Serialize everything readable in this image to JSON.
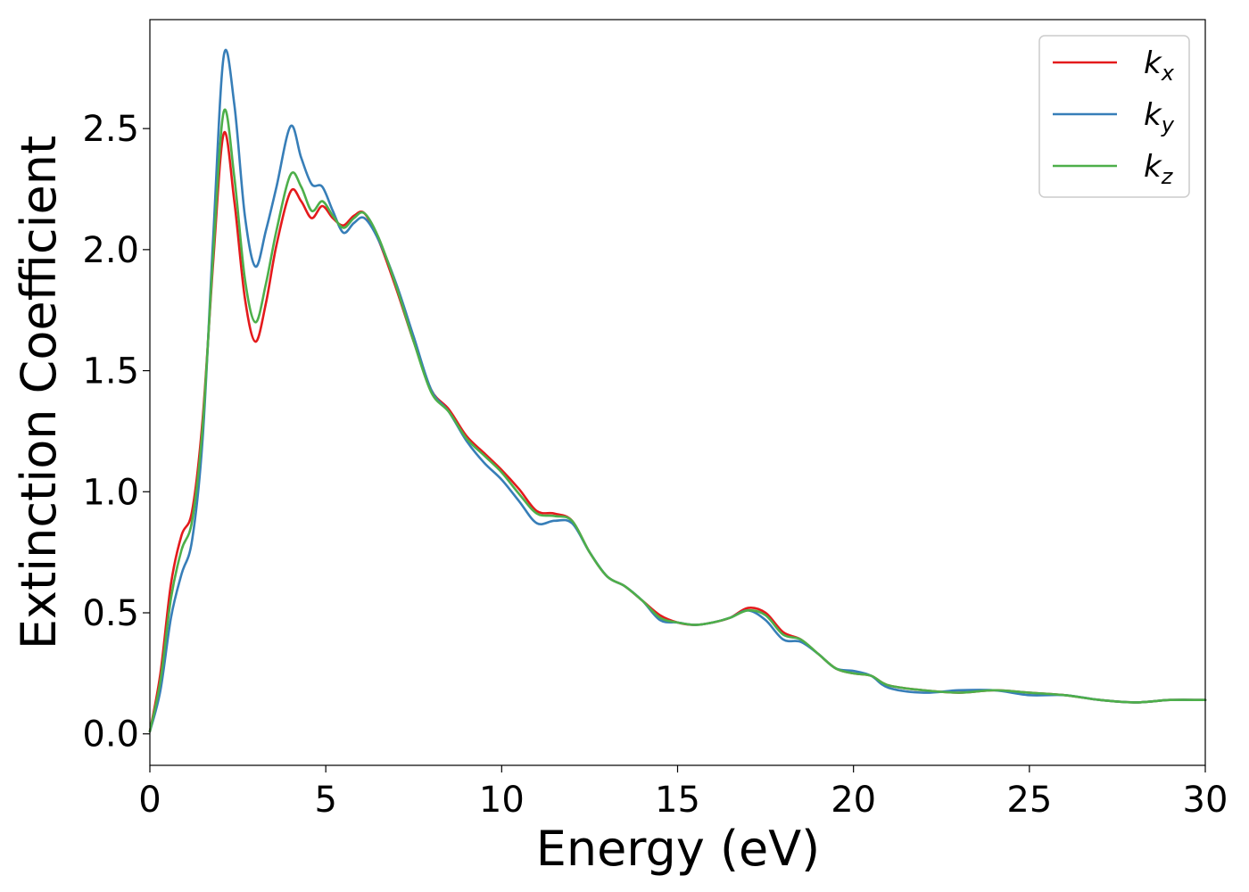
{
  "chart_data": {
    "type": "line",
    "xlabel": "Energy (eV)",
    "ylabel": "Extinction Coefficient",
    "xlim": [
      0,
      30
    ],
    "ylim": [
      -0.13,
      2.95
    ],
    "xticks": [
      0,
      5,
      10,
      15,
      20,
      25,
      30
    ],
    "xtick_labels": [
      "0",
      "5",
      "10",
      "15",
      "20",
      "25",
      "30"
    ],
    "yticks": [
      0.0,
      0.5,
      1.0,
      1.5,
      2.0,
      2.5
    ],
    "ytick_labels": [
      "0.0",
      "0.5",
      "1.0",
      "1.5",
      "2.0",
      "2.5"
    ],
    "grid": false,
    "legend_position": "top-right",
    "series": [
      {
        "name": "k_x",
        "label_main": "k",
        "label_sub": "x",
        "color": "#e41a1c",
        "points": [
          [
            0,
            0.01
          ],
          [
            0.3,
            0.25
          ],
          [
            0.6,
            0.62
          ],
          [
            0.9,
            0.82
          ],
          [
            1.2,
            0.92
          ],
          [
            1.5,
            1.3
          ],
          [
            1.8,
            1.95
          ],
          [
            2.1,
            2.48
          ],
          [
            2.4,
            2.2
          ],
          [
            2.7,
            1.8
          ],
          [
            3.0,
            1.62
          ],
          [
            3.3,
            1.78
          ],
          [
            3.6,
            2.02
          ],
          [
            4.0,
            2.24
          ],
          [
            4.3,
            2.2
          ],
          [
            4.6,
            2.13
          ],
          [
            4.9,
            2.18
          ],
          [
            5.2,
            2.13
          ],
          [
            5.5,
            2.1
          ],
          [
            5.8,
            2.14
          ],
          [
            6.1,
            2.15
          ],
          [
            6.5,
            2.04
          ],
          [
            7.0,
            1.84
          ],
          [
            7.5,
            1.62
          ],
          [
            8.0,
            1.42
          ],
          [
            8.5,
            1.34
          ],
          [
            9.0,
            1.23
          ],
          [
            9.5,
            1.16
          ],
          [
            10.0,
            1.09
          ],
          [
            10.5,
            1.01
          ],
          [
            11.0,
            0.92
          ],
          [
            11.5,
            0.91
          ],
          [
            12.0,
            0.88
          ],
          [
            12.5,
            0.75
          ],
          [
            13.0,
            0.65
          ],
          [
            13.5,
            0.61
          ],
          [
            14.0,
            0.55
          ],
          [
            14.5,
            0.49
          ],
          [
            15.0,
            0.46
          ],
          [
            15.5,
            0.45
          ],
          [
            16.0,
            0.46
          ],
          [
            16.5,
            0.48
          ],
          [
            17.0,
            0.52
          ],
          [
            17.5,
            0.5
          ],
          [
            18.0,
            0.42
          ],
          [
            18.5,
            0.39
          ],
          [
            19.0,
            0.33
          ],
          [
            19.5,
            0.27
          ],
          [
            20.0,
            0.25
          ],
          [
            20.5,
            0.24
          ],
          [
            21.0,
            0.2
          ],
          [
            22.0,
            0.18
          ],
          [
            23.0,
            0.17
          ],
          [
            24.0,
            0.18
          ],
          [
            25.0,
            0.17
          ],
          [
            26.0,
            0.16
          ],
          [
            27.0,
            0.14
          ],
          [
            28.0,
            0.13
          ],
          [
            29.0,
            0.14
          ],
          [
            30.0,
            0.14
          ]
        ]
      },
      {
        "name": "k_y",
        "label_main": "k",
        "label_sub": "y",
        "color": "#377eb8",
        "points": [
          [
            0,
            0.01
          ],
          [
            0.3,
            0.18
          ],
          [
            0.6,
            0.48
          ],
          [
            0.9,
            0.66
          ],
          [
            1.2,
            0.8
          ],
          [
            1.5,
            1.22
          ],
          [
            1.8,
            2.05
          ],
          [
            2.1,
            2.8
          ],
          [
            2.4,
            2.6
          ],
          [
            2.7,
            2.14
          ],
          [
            3.0,
            1.93
          ],
          [
            3.3,
            2.08
          ],
          [
            3.6,
            2.26
          ],
          [
            4.0,
            2.51
          ],
          [
            4.3,
            2.38
          ],
          [
            4.6,
            2.27
          ],
          [
            4.9,
            2.26
          ],
          [
            5.2,
            2.16
          ],
          [
            5.5,
            2.07
          ],
          [
            5.8,
            2.11
          ],
          [
            6.1,
            2.13
          ],
          [
            6.5,
            2.04
          ],
          [
            7.0,
            1.86
          ],
          [
            7.5,
            1.64
          ],
          [
            8.0,
            1.42
          ],
          [
            8.5,
            1.33
          ],
          [
            9.0,
            1.21
          ],
          [
            9.5,
            1.12
          ],
          [
            10.0,
            1.05
          ],
          [
            10.5,
            0.96
          ],
          [
            11.0,
            0.87
          ],
          [
            11.5,
            0.88
          ],
          [
            12.0,
            0.87
          ],
          [
            12.5,
            0.75
          ],
          [
            13.0,
            0.65
          ],
          [
            13.5,
            0.61
          ],
          [
            14.0,
            0.55
          ],
          [
            14.5,
            0.47
          ],
          [
            15.0,
            0.46
          ],
          [
            15.5,
            0.45
          ],
          [
            16.0,
            0.46
          ],
          [
            16.5,
            0.48
          ],
          [
            17.0,
            0.51
          ],
          [
            17.5,
            0.47
          ],
          [
            18.0,
            0.39
          ],
          [
            18.5,
            0.38
          ],
          [
            19.0,
            0.33
          ],
          [
            19.5,
            0.27
          ],
          [
            20.0,
            0.26
          ],
          [
            20.5,
            0.24
          ],
          [
            21.0,
            0.19
          ],
          [
            22.0,
            0.17
          ],
          [
            23.0,
            0.18
          ],
          [
            24.0,
            0.18
          ],
          [
            25.0,
            0.16
          ],
          [
            26.0,
            0.16
          ],
          [
            27.0,
            0.14
          ],
          [
            28.0,
            0.13
          ],
          [
            29.0,
            0.14
          ],
          [
            30.0,
            0.14
          ]
        ]
      },
      {
        "name": "k_z",
        "label_main": "k",
        "label_sub": "z",
        "color": "#4daf4a",
        "points": [
          [
            0,
            0.01
          ],
          [
            0.3,
            0.22
          ],
          [
            0.6,
            0.56
          ],
          [
            0.9,
            0.76
          ],
          [
            1.2,
            0.88
          ],
          [
            1.5,
            1.27
          ],
          [
            1.8,
            1.98
          ],
          [
            2.1,
            2.57
          ],
          [
            2.4,
            2.3
          ],
          [
            2.7,
            1.88
          ],
          [
            3.0,
            1.7
          ],
          [
            3.3,
            1.86
          ],
          [
            3.6,
            2.08
          ],
          [
            4.0,
            2.31
          ],
          [
            4.3,
            2.26
          ],
          [
            4.6,
            2.16
          ],
          [
            4.9,
            2.2
          ],
          [
            5.2,
            2.14
          ],
          [
            5.5,
            2.09
          ],
          [
            5.8,
            2.13
          ],
          [
            6.1,
            2.15
          ],
          [
            6.5,
            2.05
          ],
          [
            7.0,
            1.85
          ],
          [
            7.5,
            1.62
          ],
          [
            8.0,
            1.41
          ],
          [
            8.5,
            1.33
          ],
          [
            9.0,
            1.22
          ],
          [
            9.5,
            1.15
          ],
          [
            10.0,
            1.08
          ],
          [
            10.5,
            0.99
          ],
          [
            11.0,
            0.91
          ],
          [
            11.5,
            0.9
          ],
          [
            12.0,
            0.88
          ],
          [
            12.5,
            0.75
          ],
          [
            13.0,
            0.65
          ],
          [
            13.5,
            0.61
          ],
          [
            14.0,
            0.55
          ],
          [
            14.5,
            0.48
          ],
          [
            15.0,
            0.46
          ],
          [
            15.5,
            0.45
          ],
          [
            16.0,
            0.46
          ],
          [
            16.5,
            0.48
          ],
          [
            17.0,
            0.51
          ],
          [
            17.5,
            0.49
          ],
          [
            18.0,
            0.41
          ],
          [
            18.5,
            0.39
          ],
          [
            19.0,
            0.33
          ],
          [
            19.5,
            0.27
          ],
          [
            20.0,
            0.25
          ],
          [
            20.5,
            0.24
          ],
          [
            21.0,
            0.2
          ],
          [
            22.0,
            0.18
          ],
          [
            23.0,
            0.17
          ],
          [
            24.0,
            0.18
          ],
          [
            25.0,
            0.17
          ],
          [
            26.0,
            0.16
          ],
          [
            27.0,
            0.14
          ],
          [
            28.0,
            0.13
          ],
          [
            29.0,
            0.14
          ],
          [
            30.0,
            0.14
          ]
        ]
      }
    ]
  }
}
